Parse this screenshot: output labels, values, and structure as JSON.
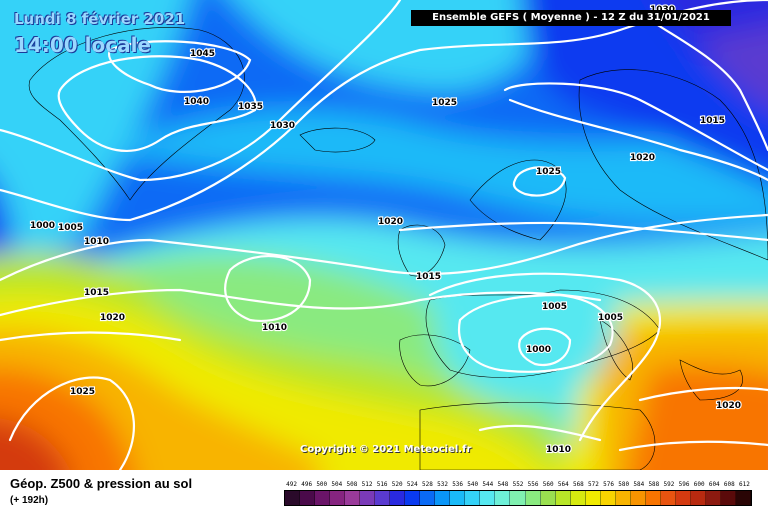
{
  "header": {
    "date": "Lundi 8 février 2021",
    "local_time": "14:00 locale",
    "model_run": "Ensemble GEFS  ( Moyenne )  -  12 Z du 31/01/2021"
  },
  "copyright": "Copyright © 2021 Meteociel.fr",
  "footer": {
    "field": "Géop. Z500 & pression au sol",
    "lead_time": "(+ 192h)"
  },
  "pressure_labels": [
    "1045",
    "1040",
    "1035",
    "1030",
    "1025",
    "1015",
    "1030",
    "1020",
    "1025",
    "1020",
    "1000",
    "1005",
    "1010",
    "1015",
    "1020",
    "1010",
    "1025",
    "1015",
    "1005",
    "1005",
    "1000",
    "1010",
    "1020"
  ],
  "color_scale": {
    "values": [
      "492",
      "496",
      "500",
      "504",
      "508",
      "512",
      "516",
      "520",
      "524",
      "528",
      "532",
      "536",
      "540",
      "544",
      "548",
      "552",
      "556",
      "560",
      "564",
      "568",
      "572",
      "576",
      "580",
      "584",
      "588",
      "592",
      "596",
      "600",
      "604",
      "608",
      "612"
    ],
    "colors": [
      "#2a0a2a",
      "#4a0a4a",
      "#6a1468",
      "#862480",
      "#9a3a9a",
      "#7a3ab8",
      "#5a3ad0",
      "#2a2ae0",
      "#0a3af0",
      "#0a6af5",
      "#0a96f8",
      "#1abaf8",
      "#34d2f8",
      "#56e8f0",
      "#6ef0d8",
      "#80f0b0",
      "#8aea80",
      "#9ae050",
      "#b8e628",
      "#d6ea10",
      "#f0ea00",
      "#f8d400",
      "#f8b400",
      "#f89400",
      "#f87400",
      "#e85410",
      "#d43a10",
      "#b82a10",
      "#8c1a10",
      "#5a0a0a",
      "#2a0505"
    ]
  }
}
